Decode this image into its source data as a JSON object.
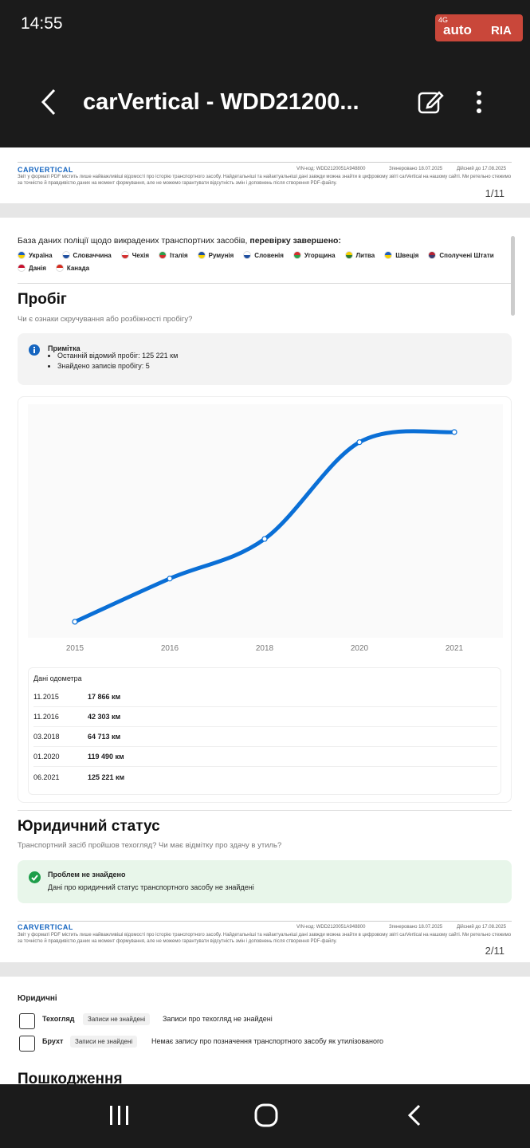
{
  "status_bar": {
    "time": "14:55",
    "watermark": {
      "network": "4G",
      "brand": "auto",
      "brand2": "RIA"
    }
  },
  "header": {
    "title": "carVertical - WDD21200..."
  },
  "page1": {
    "footer": {
      "logo": "CARVERTICAL",
      "vin": "VIN-код:  WDD2120051A948800",
      "generated": "Згенеровано  18.07.2025",
      "valid": "Дійсний до  17.08.2025",
      "disclaimer": "Звіт у форматі PDF містить лише найважливіші відомості про історію транспортного засобу. Найдетальніші та найактуальніші дані завжди можна знайти в цифровому звіті carVertical на нашому сайті. Ми ретельно стежимо за точністю й правдивістю даних на момент формування, але не можемо гарантувати відсутність змін і доповнень після створення PDF-файлу.",
      "page_number": "1/11"
    }
  },
  "page2": {
    "police": {
      "text": "База даних поліції щодо викрадених транспортних засобів, ",
      "bold": "перевірку завершено:",
      "countries": [
        "Україна",
        "Словаччина",
        "Чехія",
        "Італія",
        "Румунія",
        "Словенія",
        "Угорщина",
        "Литва",
        "Швеція",
        "Сполучені Штати",
        "Данія",
        "Канада"
      ]
    },
    "mileage": {
      "title": "Пробіг",
      "subtitle": "Чи є ознаки скручування або розбіжності пробігу?",
      "note": {
        "title": "Примітка",
        "items": [
          "Останній відомий пробіг: 125 221 км",
          "Знайдено записів пробігу: 5"
        ]
      }
    },
    "odometer": {
      "title": "Дані одометра",
      "rows": [
        [
          "11.2015",
          "17 866 км"
        ],
        [
          "11.2016",
          "42 303 км"
        ],
        [
          "03.2018",
          "64 713 км"
        ],
        [
          "01.2020",
          "119 490 км"
        ],
        [
          "06.2021",
          "125 221 км"
        ]
      ]
    },
    "legal": {
      "title": "Юридичний статус",
      "subtitle": "Транспортний засіб пройшов техогляд? Чи має відмітку про здачу в утиль?",
      "result_title": "Проблем не знайдено",
      "result_text": "Дані про юридичний статус транспортного засобу не знайдені"
    },
    "footer": {
      "logo": "CARVERTICAL",
      "vin": "VIN-код:  WDD2120051A948800",
      "generated": "Згенеровано  18.07.2025",
      "valid": "Дійсний до  17.08.2025",
      "disclaimer": "Звіт у форматі PDF містить лише найважливіші відомості про історію транспортного засобу. Найдетальніші та найактуальніші дані завжди можна знайти в цифровому звіті carVertical на нашому сайті. Ми ретельно стежимо за точністю й правдивістю даних на момент формування, але не можемо гарантувати відсутність змін і доповнень після створення PDF-файлу.",
      "page_number": "2/11"
    }
  },
  "page3": {
    "title": "Юридичні",
    "rows": [
      {
        "label": "Техогляд",
        "badge": "Записи не знайдені",
        "text": "Записи про техогляд не знайдені"
      },
      {
        "label": "Брухт",
        "badge": "Записи не знайдені",
        "text": "Немає запису про позначення транспортного засобу як утилізованого"
      }
    ],
    "next_title": "Пошкодження"
  },
  "chart_data": {
    "type": "line",
    "categories": [
      "2015",
      "2016",
      "2018",
      "2020",
      "2021"
    ],
    "values": [
      17866,
      42303,
      64713,
      119490,
      125221
    ],
    "color": "#0a6fd6",
    "ylim": [
      8800,
      141000
    ]
  }
}
